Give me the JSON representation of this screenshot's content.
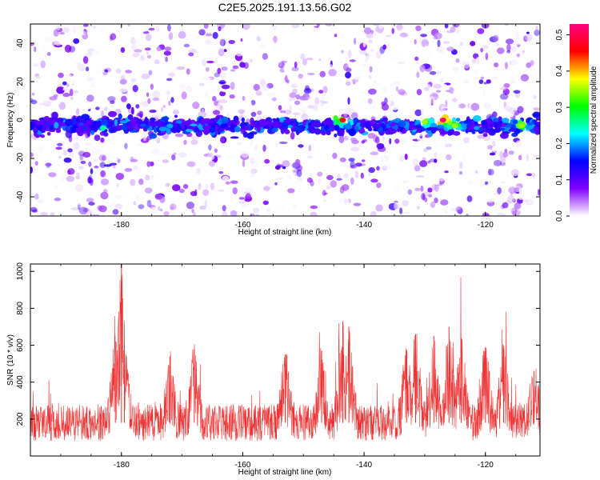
{
  "chart_data": [
    {
      "type": "heatmap",
      "title": "C2E5.2025.191.13.56.G02",
      "xlabel": "Height of straight line (km)",
      "ylabel": "Frequency (Hz)",
      "xlim": [
        -195,
        -111
      ],
      "ylim": [
        -50,
        50
      ],
      "xticks": [
        "-180",
        "-160",
        "-140",
        "-120"
      ],
      "yticks": [
        "40",
        "20",
        "0",
        "-20",
        "-40"
      ],
      "colorbar": {
        "label": "Normalized spectral amplitude",
        "range": [
          0,
          0.53
        ],
        "ticks": [
          "0.0",
          "0.1",
          "0.2",
          "0.3",
          "0.4",
          "0.5"
        ],
        "colormap": [
          "#ffffff",
          "#8000ff",
          "#0000ff",
          "#00ffff",
          "#00ff00",
          "#ffff00",
          "#ff0000",
          "#ff0080"
        ]
      },
      "band": {
        "center_freq": -3,
        "half_width": 8,
        "hotspots": [
          {
            "x": -183,
            "y": -4,
            "value": 0.25
          },
          {
            "x": -172,
            "y": -3,
            "value": 0.2
          },
          {
            "x": -143.5,
            "y": 0,
            "value": 0.45
          },
          {
            "x": -130,
            "y": -1,
            "value": 0.35
          },
          {
            "x": -127,
            "y": 0,
            "value": 0.53
          },
          {
            "x": -125,
            "y": -3,
            "value": 0.35
          },
          {
            "x": -114,
            "y": -3,
            "value": 0.35
          }
        ]
      }
    },
    {
      "type": "line",
      "title": "",
      "xlabel": "Height of straight line (km)",
      "ylabel": "SNR (10 * v/v)",
      "xlim": [
        -195,
        -111
      ],
      "ylim": [
        0,
        1040
      ],
      "xticks": [
        "-180",
        "-160",
        "-140",
        "-120"
      ],
      "yticks": [
        "200",
        "400",
        "600",
        "800",
        "1000"
      ],
      "series": [
        {
          "color": "#ee3333",
          "baseline": 180,
          "peaks": [
            {
              "x": -180,
              "y": 1040
            },
            {
              "x": -181,
              "y": 620
            },
            {
              "x": -179.5,
              "y": 600
            },
            {
              "x": -168,
              "y": 580
            },
            {
              "x": -172,
              "y": 540
            },
            {
              "x": -153,
              "y": 550
            },
            {
              "x": -147,
              "y": 570
            },
            {
              "x": -143.5,
              "y": 730
            },
            {
              "x": -142.5,
              "y": 700
            },
            {
              "x": -133,
              "y": 570
            },
            {
              "x": -131.5,
              "y": 660
            },
            {
              "x": -128.5,
              "y": 650
            },
            {
              "x": -126,
              "y": 700
            },
            {
              "x": -124,
              "y": 640
            },
            {
              "x": -120,
              "y": 590
            },
            {
              "x": -117,
              "y": 580
            },
            {
              "x": -112,
              "y": 460
            }
          ]
        }
      ]
    }
  ]
}
